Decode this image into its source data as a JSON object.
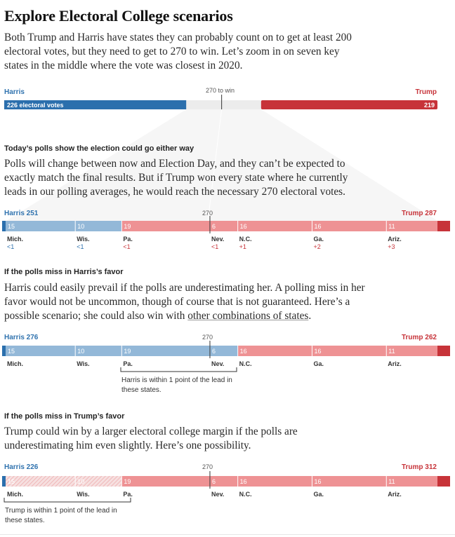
{
  "title": "Explore Electoral College scenarios",
  "intro": "Both Trump and Harris have states they can probably count on to get at least 200 electoral votes, but they need to get to 270 to win. Let’s zoom in on seven key states in the middle where the vote was closest in 2020.",
  "colors": {
    "harris_dark": "#2b6fad",
    "harris_light": "#93b8d8",
    "harris_uncertain": "#f6e0e0",
    "trump_dark": "#c73339",
    "trump_light": "#ee9294",
    "neutral": "#ececec"
  },
  "top_bar": {
    "harris_label": "Harris",
    "harris_value_label": "226 electoral votes",
    "trump_label": "Trump",
    "trump_value_label": "219",
    "threshold_label": "270 to win"
  },
  "sections": {
    "polls": {
      "heading": "Today’s polls show the election could go either way",
      "text": "Polls will change between now and Election Day, and they can’t be expected to exactly match the final results. But if Trump won every state where he currently leads in our polling averages, he would reach the necessary 270 electoral votes.",
      "harris_total": "Harris 251",
      "trump_total": "Trump 287",
      "threshold": "270"
    },
    "harris_miss": {
      "heading": "If the polls miss in Harris’s favor",
      "text_before_link": "Harris could easily prevail if the polls are underestimating her. A polling miss in her favor would not be uncommon, though of course that is not guaranteed. Here’s a possible scenario; she could also win with ",
      "link": "other combinations of states",
      "text_after_link": ".",
      "harris_total": "Harris 276",
      "trump_total": "Trump 262",
      "threshold": "270",
      "note": "Harris is within 1 point of the lead in these states."
    },
    "trump_miss": {
      "heading": "If the polls miss in Trump’s favor",
      "text": "Trump could win by a larger electoral college margin if the polls are underestimating him even slightly. Here’s one possibility.",
      "harris_total": "Harris 226",
      "trump_total": "Trump 312",
      "threshold": "270",
      "note": "Trump is within 1 point of the lead in these states."
    }
  },
  "chart_data": [
    {
      "type": "bar",
      "title": "",
      "segments": [
        {
          "name": "Harris",
          "value": 226,
          "label": "226 electoral votes"
        },
        {
          "name": "Trump",
          "value": 219,
          "label": "219"
        }
      ],
      "total": 538,
      "threshold": 270,
      "threshold_label": "270 to win"
    },
    {
      "type": "bar",
      "title": "Today’s polls show the election could go either way",
      "threshold": 270,
      "threshold_label": "270",
      "totals": {
        "Harris": 251,
        "Trump": 287
      },
      "states": [
        {
          "state": "Mich.",
          "ev": 15,
          "winner": "Harris",
          "margin": "<1"
        },
        {
          "state": "Wis.",
          "ev": 10,
          "winner": "Harris",
          "margin": "<1"
        },
        {
          "state": "Pa.",
          "ev": 19,
          "winner": "Trump",
          "margin": "<1"
        },
        {
          "state": "Nev.",
          "ev": 6,
          "winner": "Trump",
          "margin": "<1"
        },
        {
          "state": "N.C.",
          "ev": 16,
          "winner": "Trump",
          "margin": "+1"
        },
        {
          "state": "Ga.",
          "ev": 16,
          "winner": "Trump",
          "margin": "+2"
        },
        {
          "state": "Ariz.",
          "ev": 11,
          "winner": "Trump",
          "margin": "+3"
        }
      ]
    },
    {
      "type": "bar",
      "title": "If the polls miss in Harris’s favor",
      "threshold": 270,
      "threshold_label": "270",
      "totals": {
        "Harris": 276,
        "Trump": 262
      },
      "states": [
        {
          "state": "Mich.",
          "ev": 15,
          "winner": "Harris"
        },
        {
          "state": "Wis.",
          "ev": 10,
          "winner": "Harris"
        },
        {
          "state": "Pa.",
          "ev": 19,
          "winner": "Harris"
        },
        {
          "state": "Nev.",
          "ev": 6,
          "winner": "Harris"
        },
        {
          "state": "N.C.",
          "ev": 16,
          "winner": "Trump"
        },
        {
          "state": "Ga.",
          "ev": 16,
          "winner": "Trump"
        },
        {
          "state": "Ariz.",
          "ev": 11,
          "winner": "Trump"
        }
      ]
    },
    {
      "type": "bar",
      "title": "If the polls miss in Trump’s favor",
      "threshold": 270,
      "threshold_label": "270",
      "totals": {
        "Harris": 226,
        "Trump": 312
      },
      "states": [
        {
          "state": "Mich.",
          "ev": 15,
          "winner": "Trump"
        },
        {
          "state": "Wis.",
          "ev": 10,
          "winner": "Trump"
        },
        {
          "state": "Pa.",
          "ev": 19,
          "winner": "Trump"
        },
        {
          "state": "Nev.",
          "ev": 6,
          "winner": "Trump"
        },
        {
          "state": "N.C.",
          "ev": 16,
          "winner": "Trump"
        },
        {
          "state": "Ga.",
          "ev": 16,
          "winner": "Trump"
        },
        {
          "state": "Ariz.",
          "ev": 11,
          "winner": "Trump"
        }
      ]
    }
  ]
}
